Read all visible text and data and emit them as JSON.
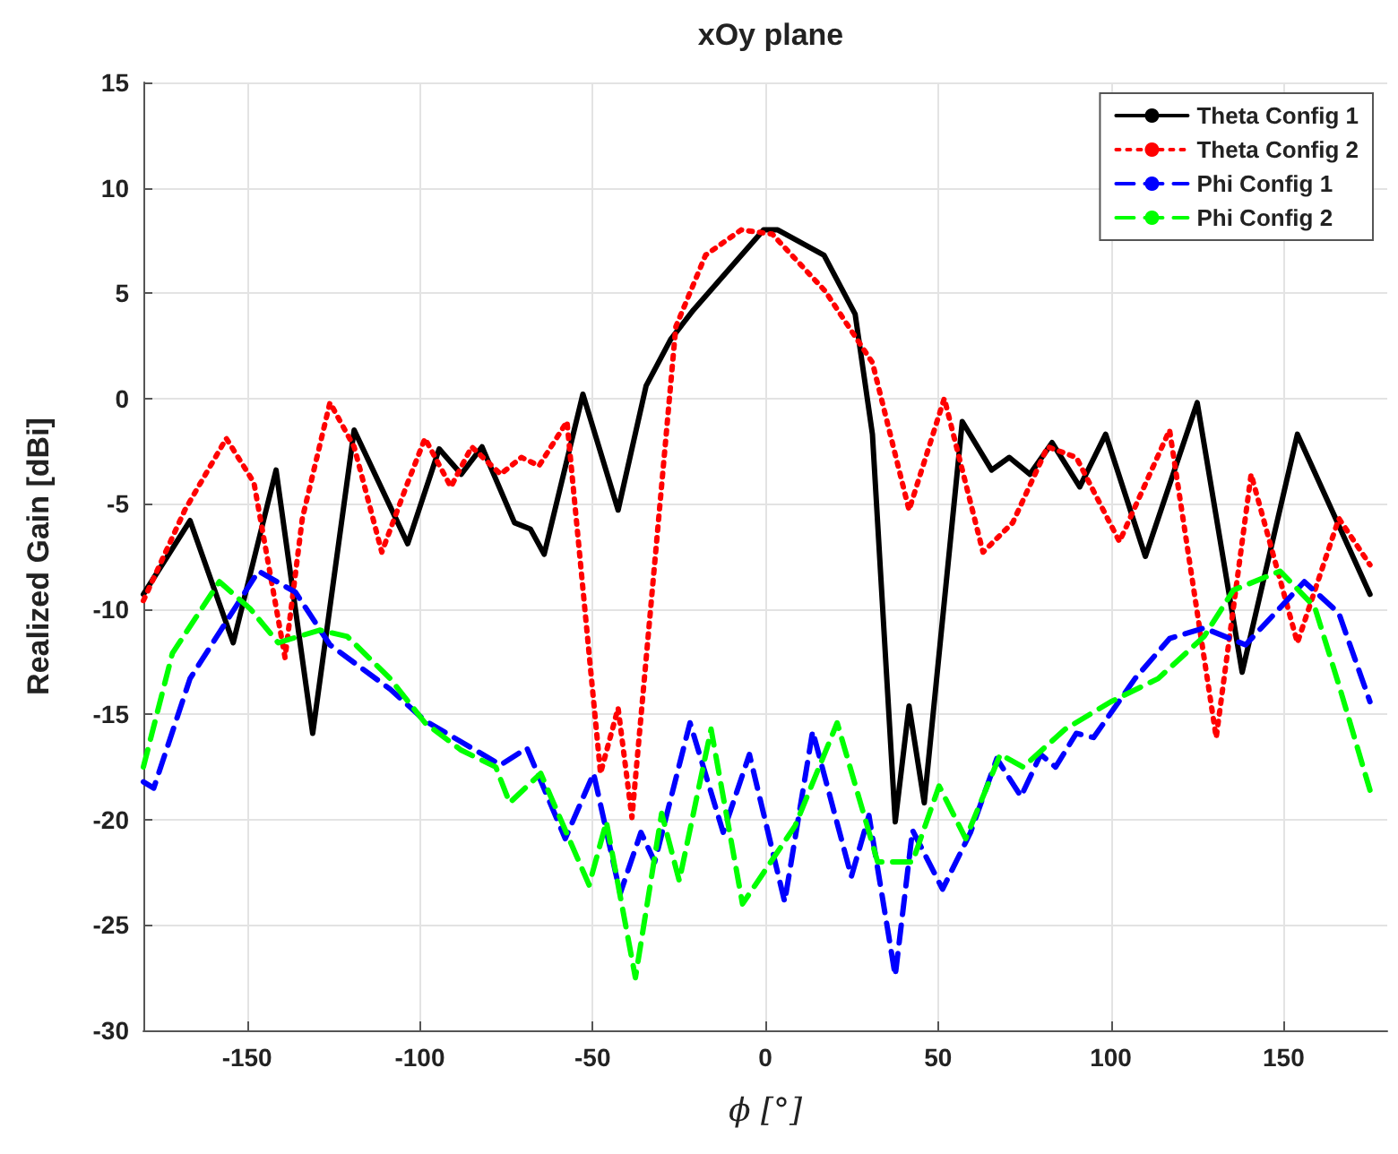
{
  "chart_data": {
    "type": "line",
    "title": "xOy plane",
    "xlabel": "ϕ [°]",
    "ylabel": "Realized Gain [dBi]",
    "xlim": [
      -180,
      180
    ],
    "xticks": [
      -150,
      -100,
      -50,
      0,
      50,
      100,
      150
    ],
    "ylim": [
      -30,
      15
    ],
    "yticks": [
      -30,
      -25,
      -20,
      -15,
      -10,
      -5,
      0,
      5,
      10,
      15
    ],
    "grid": true,
    "legend": "top right",
    "marker": "none",
    "series": [
      {
        "name": "Theta Config 1",
        "color": "#000000",
        "line_style": "solid",
        "x": [
          -180,
          -166.5,
          -154,
          -141.6,
          -131,
          -119,
          -103.5,
          -94.4,
          -88,
          -82,
          -72.6,
          -68,
          -64,
          -52.8,
          -42.6,
          -34.5,
          -27.4,
          -20.8,
          -0.5,
          3.6,
          17,
          26,
          31,
          37.6,
          41.6,
          46,
          57,
          65.5,
          70.6,
          76.6,
          83,
          91,
          98.5,
          110,
          125,
          138,
          154,
          175
        ],
        "values": [
          -9.3,
          -5.8,
          -11.6,
          -3.4,
          -15.9,
          -1.5,
          -6.9,
          -2.4,
          -3.6,
          -2.3,
          -5.9,
          -6.2,
          -7.4,
          0.2,
          -5.3,
          0.6,
          2.8,
          4.2,
          8,
          8,
          6.8,
          4,
          -1.7,
          -20.1,
          -14.6,
          -19.2,
          -1.1,
          -3.4,
          -2.8,
          -3.6,
          -2.1,
          -4.2,
          -1.7,
          -7.5,
          -0.2,
          -13,
          -1.7,
          -9.3
        ]
      },
      {
        "name": "Theta Config 2",
        "color": "#ff0000",
        "line_style": "dotted",
        "x": [
          -180,
          -168,
          -156,
          -148,
          -139,
          -134,
          -126,
          -119,
          -111,
          -103.5,
          -98.5,
          -91,
          -85,
          -76.6,
          -70.6,
          -65.5,
          -57.4,
          -47.7,
          -42.6,
          -38.6,
          -25.9,
          -17.3,
          -7,
          2,
          17.3,
          31,
          41.6,
          51.8,
          63,
          71.6,
          81.7,
          90,
          102.5,
          117,
          130.5,
          140.6,
          154,
          166,
          175
        ],
        "values": [
          -9.6,
          -5.3,
          -1.9,
          -4,
          -12.3,
          -5.7,
          -0.2,
          -2.3,
          -7.3,
          -4,
          -1.9,
          -4.2,
          -2.3,
          -3.6,
          -2.8,
          -3.2,
          -1.1,
          -17.8,
          -14.7,
          -19.9,
          3.4,
          6.8,
          8,
          7.8,
          5.1,
          1.7,
          -5.3,
          0,
          -7.3,
          -5.9,
          -2.3,
          -2.8,
          -6.8,
          -1.5,
          -16.1,
          -3.6,
          -11.6,
          -5.7,
          -7.9
        ]
      },
      {
        "name": "Phi Config 1",
        "color": "#0000ff",
        "line_style": "dashed",
        "x": [
          -180,
          -177,
          -166.5,
          -146.7,
          -136,
          -126,
          -108.6,
          -98.5,
          -76.6,
          -69,
          -57.9,
          -49.7,
          -42,
          -36,
          -32,
          -21.8,
          -12.2,
          -4.6,
          5.6,
          13.7,
          24.9,
          30,
          37.6,
          42.6,
          51.3,
          59.4,
          67,
          74,
          79.7,
          84,
          90,
          95,
          107,
          117,
          127,
          139,
          156,
          166,
          175
        ],
        "values": [
          -18.2,
          -18.5,
          -13.3,
          -8.2,
          -9.2,
          -11.7,
          -13.8,
          -15.3,
          -17.4,
          -16.6,
          -20.9,
          -17.8,
          -23.5,
          -20.6,
          -22,
          -15.4,
          -20.6,
          -16.9,
          -23.9,
          -15.8,
          -22.7,
          -19.8,
          -27.4,
          -20.5,
          -23.3,
          -20.6,
          -17.1,
          -18.9,
          -16.9,
          -17.5,
          -15.9,
          -16.1,
          -13.3,
          -11.4,
          -10.9,
          -11.7,
          -8.7,
          -10.2,
          -14.4
        ]
      },
      {
        "name": "Phi Config 2",
        "color": "#00ff00",
        "line_style": "dashed",
        "x": [
          -180,
          -171.6,
          -158,
          -149,
          -141,
          -129,
          -121,
          -108.6,
          -98.5,
          -88,
          -78,
          -74,
          -65,
          -51,
          -46,
          -37.6,
          -30,
          -24.9,
          -15.7,
          -6.6,
          8.6,
          20.8,
          32.5,
          42.6,
          50.3,
          58,
          68,
          74.6,
          86.8,
          100,
          113.7,
          127,
          135.5,
          149,
          159,
          166,
          175
        ],
        "values": [
          -17.5,
          -12.1,
          -8.7,
          -10,
          -11.6,
          -11,
          -11.3,
          -13.3,
          -15.4,
          -16.7,
          -17.5,
          -19.2,
          -17.8,
          -23.1,
          -20.1,
          -27.5,
          -19.7,
          -22.9,
          -15.7,
          -24,
          -20.3,
          -15.4,
          -22,
          -22,
          -18.4,
          -20.9,
          -16.9,
          -17.5,
          -15.7,
          -14.4,
          -13.3,
          -11.3,
          -9.1,
          -8.2,
          -9.9,
          -13.6,
          -18.6
        ]
      }
    ]
  }
}
